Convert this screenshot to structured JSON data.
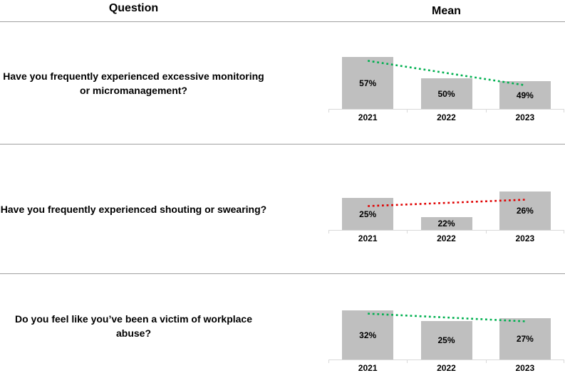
{
  "header": {
    "question": "Question",
    "mean": "Mean"
  },
  "rows": [
    {
      "question": "Have you frequently experienced excessive monitoring or micromanagement?"
    },
    {
      "question": "Have you frequently experienced shouting or swearing?"
    },
    {
      "question": "Do you feel like you’ve been a victim of workplace abuse?"
    }
  ],
  "colors": {
    "bar_fill": "#BFBFBF",
    "axis_line": "#D9D9D9",
    "row_separator": "#A0A0A0",
    "text": "#000000"
  },
  "chart_data": [
    {
      "type": "bar",
      "categories": [
        "2021",
        "2022",
        "2023"
      ],
      "values": [
        57,
        50,
        49
      ],
      "data_labels": [
        "57%",
        "50%",
        "49%"
      ],
      "bar_color": "#BFBFBF",
      "trendline": {
        "fit": "linear",
        "style": "dotted",
        "color": "#00B050",
        "direction": "decreasing"
      },
      "ylim": [
        40,
        61
      ],
      "grid": false,
      "legend": "none",
      "title": "",
      "xlabel": "",
      "ylabel": ""
    },
    {
      "type": "bar",
      "categories": [
        "2021",
        "2022",
        "2023"
      ],
      "values": [
        25,
        22,
        26
      ],
      "data_labels": [
        "25%",
        "22%",
        "26%"
      ],
      "bar_color": "#BFBFBF",
      "trendline": {
        "fit": "linear",
        "style": "dotted",
        "color": "#E00000",
        "direction": "increasing"
      },
      "ylim": [
        20,
        30
      ],
      "grid": false,
      "legend": "none",
      "title": "",
      "xlabel": "",
      "ylabel": ""
    },
    {
      "type": "bar",
      "categories": [
        "2021",
        "2022",
        "2023"
      ],
      "values": [
        32,
        25,
        27
      ],
      "data_labels": [
        "32%",
        "25%",
        "27%"
      ],
      "bar_color": "#BFBFBF",
      "trendline": {
        "fit": "linear",
        "style": "dotted",
        "color": "#00B050",
        "direction": "decreasing"
      },
      "ylim": [
        0,
        42
      ],
      "grid": false,
      "legend": "none",
      "title": "",
      "xlabel": "",
      "ylabel": ""
    }
  ]
}
